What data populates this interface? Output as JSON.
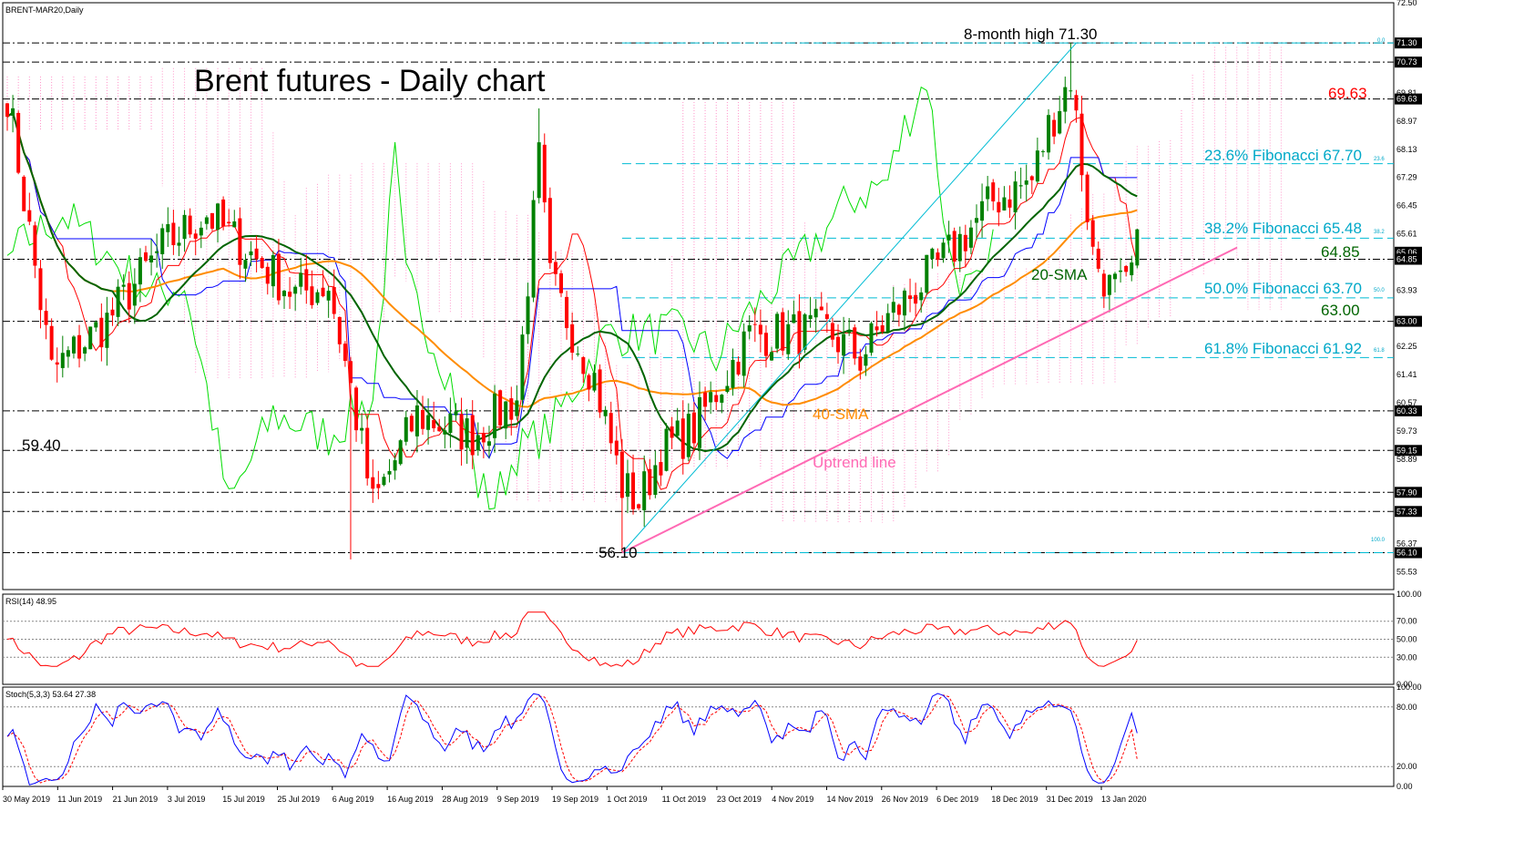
{
  "title": "Brent futures - Daily chart",
  "symbol_label": "BRENT-MAR20,Daily",
  "rsi_label": "RSI(14) 48.95",
  "stoch_label": "Stoch(5,3,3) 53.64 27.38",
  "colors": {
    "bull": "#008000",
    "bear": "#ff0000",
    "sma20": "#006400",
    "sma40": "#ff8c00",
    "tenkan": "#ff0000",
    "kijun": "#0000ff",
    "chikou": "#00dd00",
    "kumo": "#ff69b4",
    "uptrend": "#ff69b4",
    "fib": "#00bcd4",
    "rsi": "#ff0000",
    "stoch_main": "#0000ff",
    "stoch_signal": "#ff0000"
  },
  "chart_data": [
    {
      "type": "candlestick",
      "title": "Brent futures - Daily chart",
      "ylim": [
        55.0,
        72.5
      ],
      "y_ticks": [
        "72.50",
        "71.30",
        "70.73",
        "69.81",
        "69.63",
        "68.97",
        "68.13",
        "67.29",
        "66.45",
        "65.61",
        "65.06",
        "64.85",
        "63.93",
        "63.00",
        "62.25",
        "61.41",
        "60.57",
        "60.33",
        "59.73",
        "59.15",
        "58.89",
        "57.90",
        "57.33",
        "56.37",
        "56.10",
        "55.53"
      ],
      "highlighted_ticks": [
        "71.30",
        "70.73",
        "69.63",
        "65.06",
        "64.85",
        "63.00",
        "60.33",
        "59.15",
        "57.90",
        "57.33",
        "56.10"
      ],
      "x_labels": [
        "30 May 2019",
        "11 Jun 2019",
        "21 Jun 2019",
        "3 Jul 2019",
        "15 Jul 2019",
        "25 Jul 2019",
        "6 Aug 2019",
        "16 Aug 2019",
        "28 Aug 2019",
        "9 Sep 2019",
        "19 Sep 2019",
        "1 Oct 2019",
        "11 Oct 2019",
        "23 Oct 2019",
        "4 Nov 2019",
        "14 Nov 2019",
        "26 Nov 2019",
        "6 Dec 2019",
        "18 Dec 2019",
        "31 Dec 2019",
        "13 Jan 2020"
      ],
      "horizontal_levels": [
        71.3,
        70.73,
        69.63,
        64.85,
        63.0,
        60.33,
        59.15,
        57.9,
        57.33,
        56.1
      ],
      "fibonacci": {
        "high": 71.3,
        "low": 56.1,
        "levels": [
          {
            "label": "23.6% Fibonacci 67.70",
            "value": 67.7,
            "ratio": "23.6"
          },
          {
            "label": "38.2% Fibonacci 65.48",
            "value": 65.48,
            "ratio": "38.2"
          },
          {
            "label": "50.0% Fibonacci 63.70",
            "value": 63.7,
            "ratio": "50.0"
          },
          {
            "label": "61.8% Fibonacci 61.92",
            "value": 61.92,
            "ratio": "61.8"
          }
        ],
        "ratio_0": "0.0",
        "ratio_100": "100.0"
      },
      "annotations": [
        {
          "text": "8-month high 71.30",
          "color": "#000000"
        },
        {
          "text": "69.63",
          "color": "#ff0000"
        },
        {
          "text": "64.85",
          "color": "#006400"
        },
        {
          "text": "63.00",
          "color": "#006400"
        },
        {
          "text": "59.40",
          "color": "#000000"
        },
        {
          "text": "56.10",
          "color": "#000000"
        },
        {
          "text": "20-SMA",
          "color": "#006400"
        },
        {
          "text": "40-SMA",
          "color": "#ff8c00"
        },
        {
          "text": "Uptrend line",
          "color": "#ff69b4"
        }
      ],
      "uptrend_line": {
        "from": [
          1,
          56.1
        ],
        "to": [
          1,
          65.1
        ]
      }
    },
    {
      "type": "line",
      "title": "RSI(14) 48.95",
      "ylim": [
        0,
        100
      ],
      "y_ticks": [
        "100.00",
        "70.00",
        "50.00",
        "30.00",
        "0.00"
      ],
      "levels": [
        70,
        50,
        30
      ],
      "last_value": 48.95
    },
    {
      "type": "line",
      "title": "Stoch(5,3,3) 53.64 27.38",
      "ylim": [
        0,
        100
      ],
      "y_ticks": [
        "100.00",
        "80.00",
        "20.00",
        "0.00"
      ],
      "levels": [
        80,
        20
      ],
      "series": [
        {
          "name": "main",
          "last": 53.64
        },
        {
          "name": "signal",
          "last": 27.38
        }
      ]
    }
  ]
}
